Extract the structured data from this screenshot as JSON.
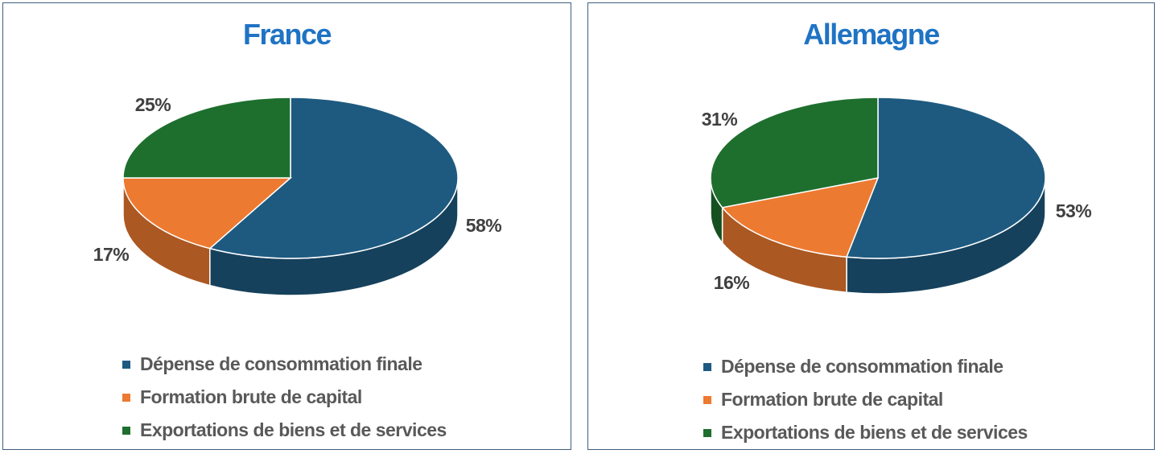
{
  "chart_data": [
    {
      "type": "pie",
      "title": "France",
      "categories": [
        "Dépense de consommation finale",
        "Formation brute de capital",
        "Exportations de biens et de services"
      ],
      "values": [
        58,
        17,
        25
      ],
      "labels": [
        "58%",
        "17%",
        "25%"
      ],
      "colors": [
        "#1e5a80",
        "#ed7a31",
        "#1e6f2e"
      ],
      "legend": "bottom",
      "style": "3d"
    },
    {
      "type": "pie",
      "title": "Allemagne",
      "categories": [
        "Dépense de consommation finale",
        "Formation brute de capital",
        "Exportations de biens et de services"
      ],
      "values": [
        53,
        16,
        31
      ],
      "labels": [
        "53%",
        "16%",
        "31%"
      ],
      "colors": [
        "#1e5a80",
        "#ed7a31",
        "#1e6f2e"
      ],
      "legend": "bottom",
      "style": "3d"
    }
  ]
}
